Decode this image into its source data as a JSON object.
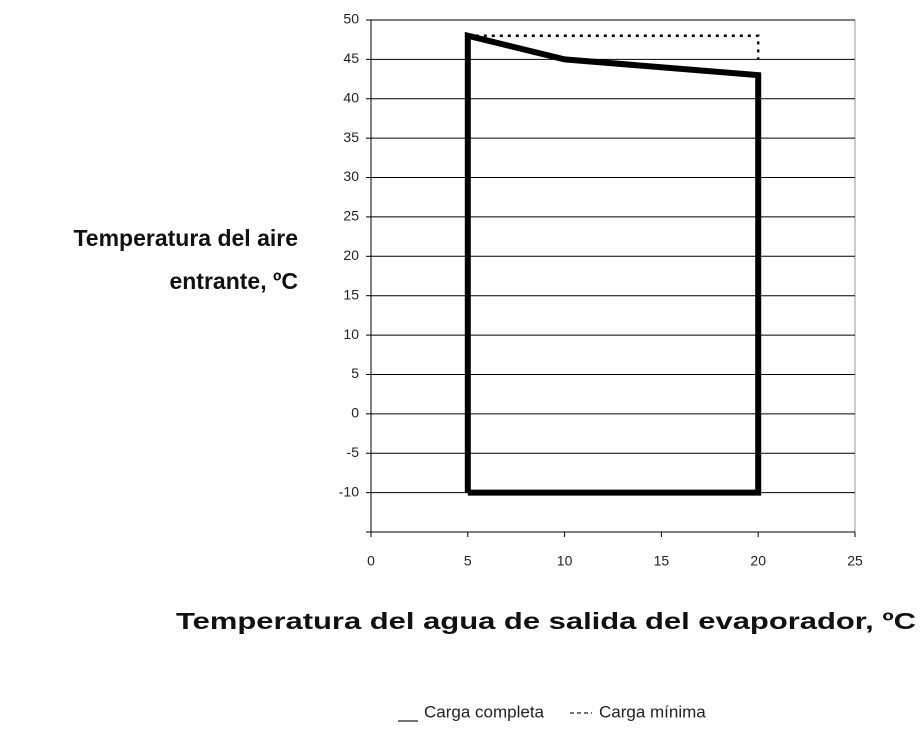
{
  "chart_data": {
    "type": "line",
    "xlabel": "Temperatura del agua de salida del evaporador, ºC",
    "ylabel": [
      "Temperatura del aire",
      "entrante, ºC"
    ],
    "xlim": [
      0,
      25
    ],
    "xticks": [
      0,
      5,
      10,
      15,
      20,
      25
    ],
    "ylim": [
      -15,
      50
    ],
    "yticks": [
      -10,
      -5,
      0,
      5,
      10,
      15,
      20,
      25,
      30,
      35,
      40,
      45,
      50
    ],
    "grid": true,
    "series": [
      {
        "name": "Carga completa",
        "color": "#000000",
        "style": "solid",
        "x": [
          5,
          5,
          10,
          20,
          20,
          5
        ],
        "values": [
          -10,
          48,
          45,
          43,
          -10,
          -10
        ]
      },
      {
        "name": "Carga mínima",
        "color": "#000000",
        "style": "dotted",
        "x": [
          5,
          20,
          20
        ],
        "values": [
          48,
          48,
          45
        ]
      }
    ]
  }
}
